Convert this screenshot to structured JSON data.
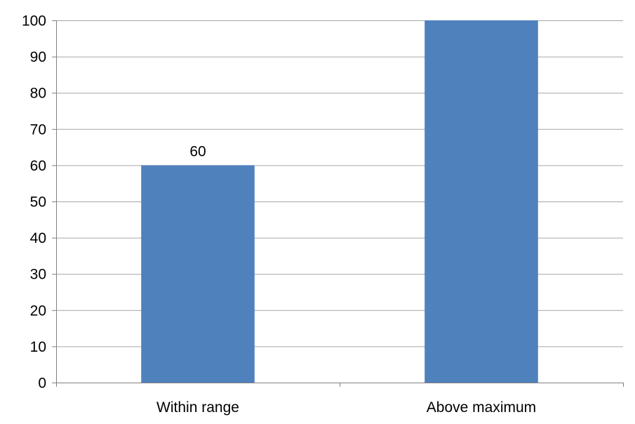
{
  "chart_data": {
    "type": "bar",
    "categories": [
      "Within range",
      "Above maximum"
    ],
    "values": [
      60,
      100
    ],
    "data_labels": [
      "60",
      ""
    ],
    "title": "",
    "xlabel": "",
    "ylabel": "",
    "ylim": [
      0,
      100
    ],
    "yticks": [
      0,
      10,
      20,
      30,
      40,
      50,
      60,
      70,
      80,
      90,
      100
    ],
    "grid": true,
    "legend": "none",
    "colors": {
      "bar": "#4f81bd",
      "grid": "#a6a6a6",
      "axis": "#808080",
      "text": "#000000"
    }
  }
}
